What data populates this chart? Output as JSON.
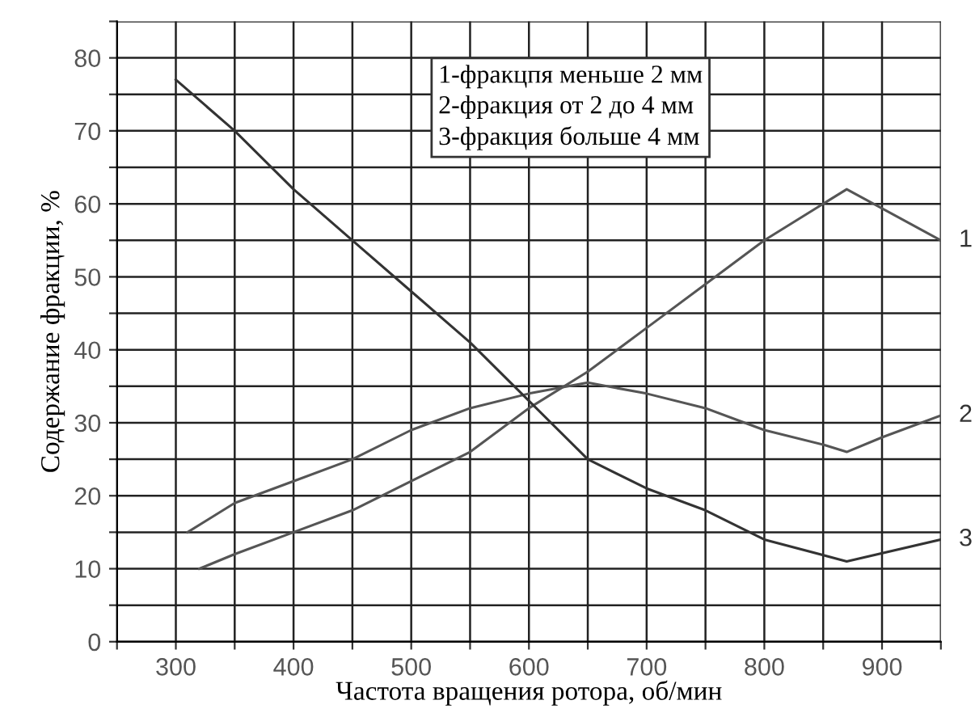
{
  "chart_data": {
    "type": "line",
    "xlabel": "Частота вращения ротора, об/мин",
    "ylabel": "Содержание фракции, %",
    "annotations": [
      "1-фракцпя меньше 2 мм\n2-фракция от 2 до 4 мм\n3-фракция больше 4 мм"
    ],
    "series": [
      {
        "name": "1",
        "color": "#555555",
        "x": [
          320,
          350,
          400,
          450,
          500,
          550,
          600,
          650,
          700,
          750,
          800,
          850,
          870,
          950
        ],
        "values": [
          10,
          12,
          15,
          18,
          22,
          26,
          32,
          37,
          43,
          49,
          55,
          60,
          62,
          55
        ]
      },
      {
        "name": "2",
        "color": "#555555",
        "x": [
          310,
          350,
          400,
          450,
          500,
          550,
          600,
          650,
          700,
          750,
          800,
          850,
          870,
          900,
          950
        ],
        "values": [
          15,
          19,
          22,
          25,
          29,
          32,
          34,
          35.5,
          34,
          32,
          29,
          27,
          26,
          28,
          31
        ]
      },
      {
        "name": "3",
        "color": "#333333",
        "x": [
          300,
          350,
          400,
          450,
          500,
          550,
          600,
          650,
          700,
          750,
          800,
          870,
          950
        ],
        "values": [
          77,
          70,
          62,
          55,
          48,
          41,
          33,
          25,
          21,
          18,
          14,
          11,
          14
        ]
      }
    ],
    "xlim": [
      250,
      950
    ],
    "ylim": [
      0,
      85
    ],
    "xticks": [
      {
        "value": 250,
        "label": null
      },
      300,
      {
        "value": 350,
        "label": null
      },
      400,
      {
        "value": 450,
        "label": null
      },
      500,
      {
        "value": 550,
        "label": null
      },
      600,
      {
        "value": 650,
        "label": null
      },
      700,
      {
        "value": 750,
        "label": null
      },
      800,
      {
        "value": 850,
        "label": null
      },
      900,
      {
        "value": 950,
        "label": null
      }
    ],
    "yticks": [
      0,
      {
        "value": 5,
        "label": null
      },
      10,
      {
        "value": 15,
        "label": null
      },
      20,
      {
        "value": 25,
        "label": null
      },
      30,
      {
        "value": 35,
        "label": null
      },
      40,
      {
        "value": 45,
        "label": null
      },
      50,
      {
        "value": 55,
        "label": null
      },
      60,
      {
        "value": 65,
        "label": null
      },
      70,
      {
        "value": 75,
        "label": null
      },
      80,
      {
        "value": 85,
        "label": null
      }
    ],
    "grid": true,
    "marker": "none",
    "line_style": "solid"
  }
}
